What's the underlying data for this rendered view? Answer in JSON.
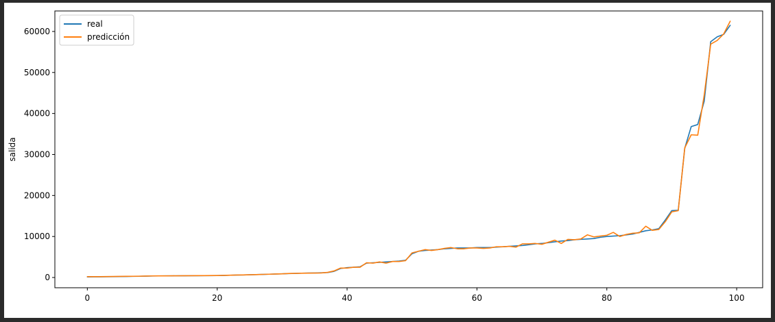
{
  "chart_data": {
    "type": "line",
    "title": "",
    "xlabel": "",
    "ylabel": "salida",
    "xlim": [
      -5,
      104
    ],
    "ylim": [
      -2500,
      65000
    ],
    "x_ticks": [
      0,
      20,
      40,
      60,
      80,
      100
    ],
    "y_ticks": [
      0,
      10000,
      20000,
      30000,
      40000,
      50000,
      60000
    ],
    "grid": false,
    "legend": "top-left",
    "x": [
      0,
      1,
      2,
      3,
      4,
      5,
      6,
      7,
      8,
      9,
      10,
      11,
      12,
      13,
      14,
      15,
      16,
      17,
      18,
      19,
      20,
      21,
      22,
      23,
      24,
      25,
      26,
      27,
      28,
      29,
      30,
      31,
      32,
      33,
      34,
      35,
      36,
      37,
      38,
      39,
      40,
      41,
      42,
      43,
      44,
      45,
      46,
      47,
      48,
      49,
      50,
      51,
      52,
      53,
      54,
      55,
      56,
      57,
      58,
      59,
      60,
      61,
      62,
      63,
      64,
      65,
      66,
      67,
      68,
      69,
      70,
      71,
      72,
      73,
      74,
      75,
      76,
      77,
      78,
      79,
      80,
      81,
      82,
      83,
      84,
      85,
      86,
      87,
      88,
      89,
      90,
      91,
      92,
      93,
      94,
      95,
      96,
      97,
      98,
      99
    ],
    "series": [
      {
        "name": "real",
        "color": "#1f77b4",
        "values": [
          150,
          160,
          170,
          180,
          200,
          220,
          250,
          280,
          300,
          330,
          360,
          380,
          390,
          400,
          410,
          420,
          430,
          440,
          450,
          460,
          470,
          500,
          550,
          600,
          630,
          660,
          700,
          750,
          800,
          850,
          900,
          950,
          1000,
          1050,
          1080,
          1100,
          1150,
          1200,
          1500,
          2200,
          2400,
          2500,
          2600,
          3500,
          3600,
          3700,
          3800,
          3900,
          4000,
          4200,
          5800,
          6400,
          6600,
          6700,
          6800,
          7000,
          7100,
          7200,
          7200,
          7200,
          7300,
          7300,
          7300,
          7400,
          7500,
          7600,
          7700,
          7800,
          8000,
          8200,
          8300,
          8500,
          8700,
          8900,
          9000,
          9200,
          9300,
          9400,
          9500,
          9800,
          10000,
          10100,
          10200,
          10400,
          10600,
          11000,
          11400,
          11600,
          11900,
          14000,
          16300,
          16400,
          31500,
          36800,
          37300,
          43000,
          57500,
          58700,
          59300,
          61500
        ]
      },
      {
        "name": "predicción",
        "color": "#ff7f0e",
        "values": [
          200,
          200,
          200,
          220,
          240,
          260,
          280,
          300,
          320,
          350,
          380,
          390,
          400,
          410,
          420,
          430,
          440,
          450,
          460,
          470,
          480,
          520,
          560,
          600,
          620,
          660,
          700,
          760,
          800,
          860,
          900,
          980,
          1000,
          1040,
          1060,
          1080,
          1100,
          1250,
          1600,
          2300,
          2300,
          2500,
          2500,
          3600,
          3500,
          3800,
          3500,
          3900,
          3900,
          4100,
          6000,
          6400,
          6800,
          6600,
          6800,
          7100,
          7300,
          7000,
          7000,
          7200,
          7200,
          7100,
          7200,
          7500,
          7500,
          7600,
          7400,
          8200,
          8200,
          8300,
          8100,
          8600,
          9100,
          8300,
          9300,
          9200,
          9400,
          10400,
          9900,
          10100,
          10300,
          11000,
          10000,
          10500,
          10800,
          10900,
          12500,
          11500,
          11700,
          13600,
          16000,
          16300,
          31600,
          34800,
          34700,
          44500,
          56900,
          57800,
          59400,
          62500
        ]
      }
    ]
  }
}
